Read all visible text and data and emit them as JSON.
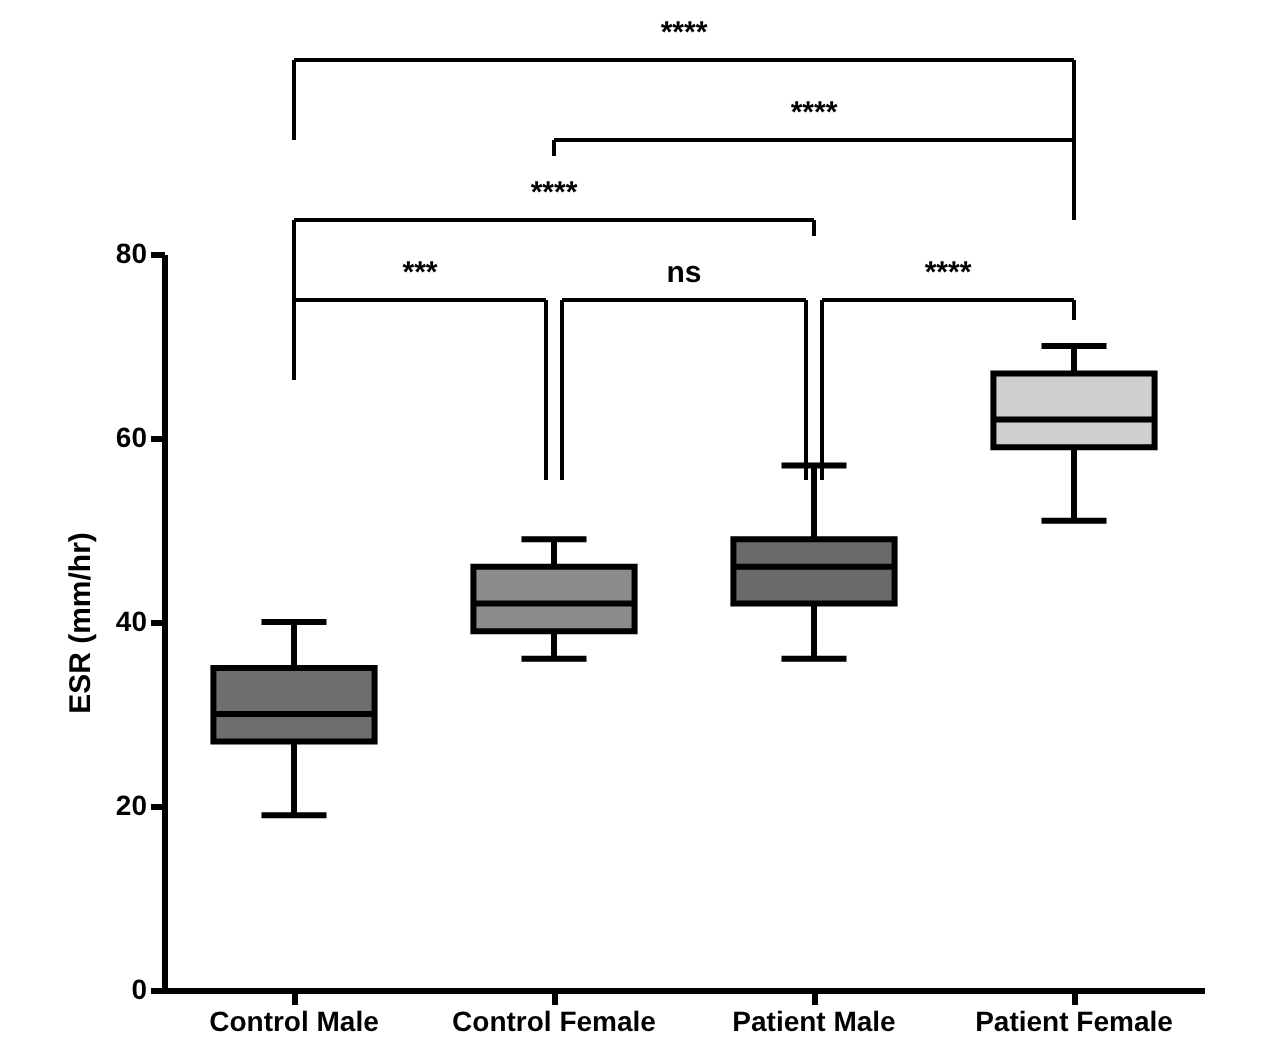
{
  "chart_data": {
    "type": "box",
    "ylabel": "ESR (mm/hr)",
    "categories": [
      "Control Male",
      "Control Female",
      "Patient Male",
      "Patient Female"
    ],
    "boxes": [
      {
        "low": 19,
        "q1": 27,
        "median": 30,
        "q3": 35,
        "high": 40
      },
      {
        "low": 36,
        "q1": 39,
        "median": 42,
        "q3": 46,
        "high": 49
      },
      {
        "low": 36,
        "q1": 42,
        "median": 46,
        "q3": 49,
        "high": 57
      },
      {
        "low": 51,
        "q1": 59,
        "median": 62,
        "q3": 67,
        "high": 70
      }
    ],
    "colors": [
      "#6e6e6e",
      "#8c8c8c",
      "#6a6a6a",
      "#cfcfcf"
    ],
    "ylim": [
      0,
      80
    ],
    "yticks": [
      0,
      20,
      40,
      60,
      80
    ],
    "grid": false,
    "annotations": [
      "***",
      "ns",
      "****",
      "****",
      "****",
      "****"
    ]
  }
}
